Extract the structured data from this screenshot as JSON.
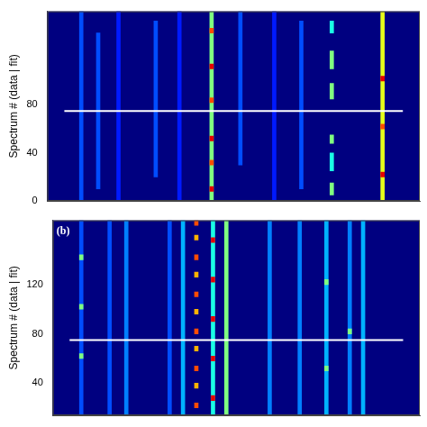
{
  "chart_data": [
    {
      "type": "heatmap",
      "y_label": "Spectrum # (data | fit)",
      "xlim": [
        0,
        100
      ],
      "ylim": [
        0,
        158
      ],
      "yticks": [
        0,
        40,
        80
      ],
      "tick_labels": "y",
      "grid": false,
      "separator": 75,
      "vlim": [
        0,
        10
      ],
      "streaks": [
        [
          5,
          0,
          158,
          2
        ],
        [
          10,
          10,
          140,
          2
        ],
        [
          16,
          0,
          158,
          1.5
        ],
        [
          27,
          20,
          150,
          2
        ],
        [
          34,
          0,
          158,
          1.5
        ],
        [
          52,
          30,
          158,
          2
        ],
        [
          62,
          0,
          158,
          1.5
        ],
        [
          70,
          10,
          150,
          2
        ],
        [
          43.5,
          0,
          158,
          5
        ],
        [
          43.5,
          8,
          12,
          9
        ],
        [
          43.5,
          30,
          34,
          8
        ],
        [
          43.5,
          50,
          54,
          9
        ],
        [
          43.5,
          82,
          86,
          8
        ],
        [
          43.5,
          110,
          114,
          9
        ],
        [
          43.5,
          140,
          144,
          8
        ],
        [
          94,
          0,
          158,
          6
        ],
        [
          94,
          20,
          24,
          9
        ],
        [
          94,
          60,
          64,
          8
        ],
        [
          94,
          100,
          104,
          9
        ],
        [
          79,
          5,
          15,
          5
        ],
        [
          79,
          25,
          40,
          4
        ],
        [
          79,
          48,
          55,
          5
        ],
        [
          79,
          85,
          98,
          5
        ],
        [
          79,
          110,
          125,
          5
        ],
        [
          79,
          140,
          150,
          4
        ]
      ]
    },
    {
      "type": "heatmap",
      "panel_label": "(b)",
      "y_label": "Spectrum # (data | fit)",
      "xlim": [
        0,
        100
      ],
      "ylim": [
        14,
        172
      ],
      "yticks": [
        40,
        80,
        120
      ],
      "tick_labels": "y",
      "grid": false,
      "separator": 75,
      "vlim": [
        0,
        10
      ],
      "streaks": [
        [
          3.5,
          14,
          172,
          2
        ],
        [
          12,
          14,
          172,
          2
        ],
        [
          17,
          14,
          172,
          2.5
        ],
        [
          30,
          14,
          172,
          2
        ],
        [
          60,
          14,
          172,
          2.5
        ],
        [
          69,
          14,
          172,
          2.5
        ],
        [
          77,
          14,
          172,
          3
        ],
        [
          84,
          14,
          172,
          2.5
        ],
        [
          88,
          14,
          172,
          3
        ],
        [
          3.5,
          60,
          64,
          5
        ],
        [
          3.5,
          100,
          104,
          5
        ],
        [
          3.5,
          140,
          144,
          5
        ],
        [
          77,
          50,
          54,
          5
        ],
        [
          77,
          120,
          124,
          5
        ],
        [
          84,
          80,
          84,
          5
        ],
        [
          34,
          14,
          172,
          3
        ],
        [
          47,
          14,
          172,
          5
        ],
        [
          43,
          14,
          172,
          4
        ],
        [
          43,
          26,
          30,
          9
        ],
        [
          43,
          58,
          62,
          9
        ],
        [
          43,
          90,
          94,
          9
        ],
        [
          43,
          122,
          126,
          9
        ],
        [
          43,
          154,
          158,
          9
        ],
        [
          38,
          20,
          24,
          8
        ],
        [
          38,
          36,
          40,
          7
        ],
        [
          38,
          50,
          54,
          8
        ],
        [
          38,
          66,
          70,
          7
        ],
        [
          38,
          80,
          84,
          8
        ],
        [
          38,
          96,
          100,
          7
        ],
        [
          38,
          110,
          114,
          8
        ],
        [
          38,
          126,
          130,
          7
        ],
        [
          38,
          140,
          144,
          8
        ],
        [
          38,
          156,
          160,
          7
        ],
        [
          38,
          168,
          172,
          8
        ]
      ]
    }
  ]
}
